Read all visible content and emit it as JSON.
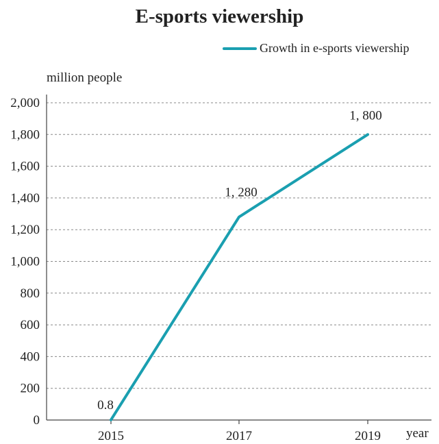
{
  "chart_data": {
    "type": "line",
    "title": "E-sports viewership",
    "ylabel": "million people",
    "xlabel": "year",
    "categories": [
      "2015",
      "2017",
      "2019"
    ],
    "series": [
      {
        "name": "Growth in e-sports viewership",
        "values": [
          0.8,
          1280,
          1800
        ],
        "color": "#1a9fb0"
      }
    ],
    "data_labels": [
      "0.8",
      "1, 280",
      "1, 800"
    ],
    "yticks": [
      0,
      200,
      400,
      600,
      800,
      1000,
      1200,
      1400,
      1600,
      1800,
      2000
    ],
    "ytick_labels": [
      "0",
      "200",
      "400",
      "600",
      "800",
      "1,000",
      "1,200",
      "1,400",
      "1,600",
      "1,800",
      "2,000"
    ],
    "ylim": [
      0,
      2000
    ],
    "grid": true,
    "legend": "top-right"
  }
}
